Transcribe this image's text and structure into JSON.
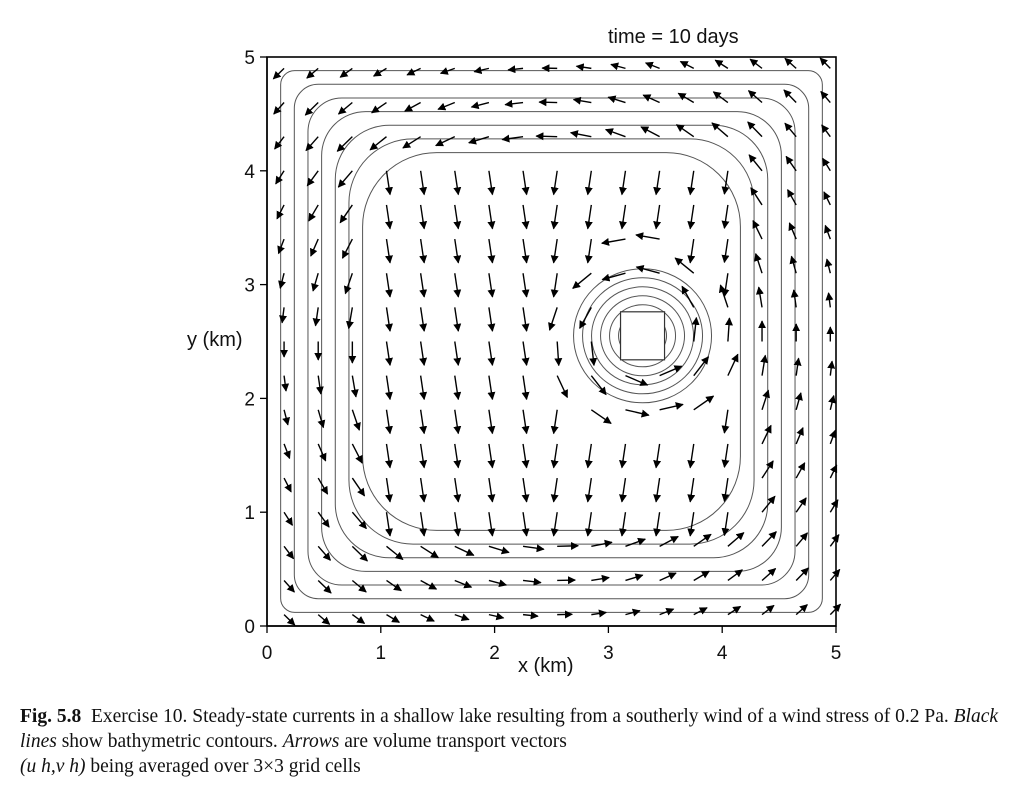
{
  "figure": {
    "time_label": "time = 10 days",
    "x_axis_label": "x (km)",
    "y_axis_label": "y (km)",
    "x_ticks": [
      "0",
      "1",
      "2",
      "3",
      "4",
      "5"
    ],
    "y_ticks": [
      "0",
      "1",
      "2",
      "3",
      "4",
      "5"
    ],
    "xlim": [
      0,
      5
    ],
    "ylim": [
      0,
      5
    ]
  },
  "caption": {
    "label": "Fig. 5.8",
    "part1": "Exercise 10. Steady-state currents in a shallow lake resulting from a southerly wind of a wind stress of 0.2 Pa. ",
    "black_lines": "Black lines",
    "part2": " show bathymetric contours. ",
    "arrows": "Arrows",
    "part3": " are volume transport vectors",
    "vector_expr": "(u h,v h)",
    "part4": " being averaged over 3×3 grid cells"
  }
}
